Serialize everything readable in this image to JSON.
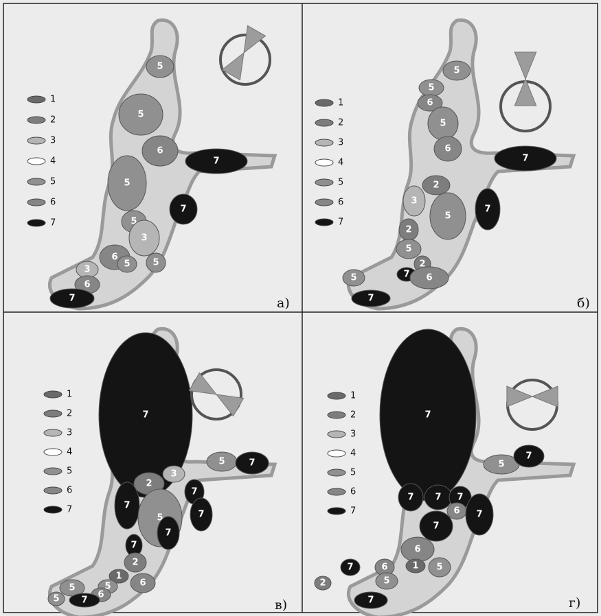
{
  "panels": [
    {
      "label": "а)",
      "legend": [
        "1",
        "2",
        "3",
        "4",
        "5",
        "6",
        "7"
      ],
      "regions": [
        "5",
        "5",
        "6",
        "7",
        "5",
        "7",
        "5",
        "3",
        "6",
        "5",
        "5",
        "3",
        "6",
        "7"
      ]
    },
    {
      "label": "б)",
      "legend": [
        "1",
        "2",
        "3",
        "4",
        "5",
        "6",
        "7"
      ],
      "regions": [
        "5",
        "5",
        "6",
        "5",
        "6",
        "7",
        "2",
        "3",
        "7",
        "5",
        "2",
        "5",
        "2",
        "7",
        "6",
        "5",
        "7"
      ]
    },
    {
      "label": "в)",
      "legend": [
        "1",
        "2",
        "3",
        "4",
        "5",
        "6",
        "7"
      ],
      "regions": [
        "7",
        "5",
        "7",
        "3",
        "2",
        "7",
        "7",
        "5",
        "7",
        "7",
        "7",
        "2",
        "1",
        "6",
        "5",
        "6",
        "5",
        "7",
        "5"
      ]
    },
    {
      "label": "г)",
      "legend": [
        "1",
        "2",
        "3",
        "4",
        "5",
        "6",
        "7"
      ],
      "regions": [
        "7",
        "5",
        "7",
        "7",
        "7",
        "7",
        "6",
        "7",
        "7",
        "6",
        "1",
        "5",
        "6",
        "7",
        "5",
        "7",
        "2"
      ]
    }
  ]
}
